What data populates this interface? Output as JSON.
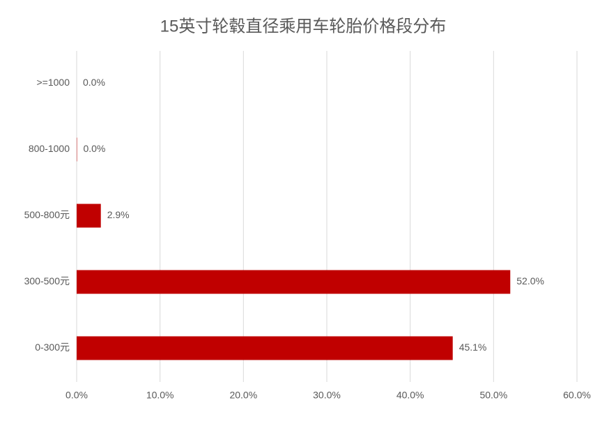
{
  "chart_data": {
    "type": "bar",
    "orientation": "horizontal",
    "title": "15英寸轮毂直径乘用车轮胎价格段分布",
    "categories": [
      ">=1000",
      "800-1000",
      "500-800元",
      "300-500元",
      "0-300元"
    ],
    "values": [
      0,
      0.04,
      2.9,
      52.0,
      45.1
    ],
    "value_labels": [
      "0.0%",
      "0.0%",
      "2.9%",
      "52.0%",
      "45.1%"
    ],
    "color": "#c00000",
    "xlim": [
      0,
      60
    ],
    "xticks": [
      {
        "value": 0,
        "label": "0.0%"
      },
      {
        "value": 10,
        "label": "10.0%"
      },
      {
        "value": 20,
        "label": "20.0%"
      },
      {
        "value": 30,
        "label": "30.0%"
      },
      {
        "value": 40,
        "label": "40.0%"
      },
      {
        "value": 50,
        "label": "50.0%"
      },
      {
        "value": 60,
        "label": "60.0%"
      }
    ],
    "grid": true
  }
}
